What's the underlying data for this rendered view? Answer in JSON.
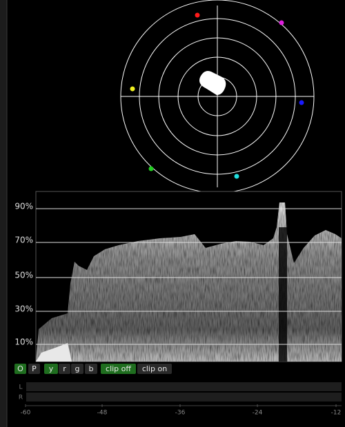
{
  "waveform": {
    "y_labels": [
      "90%",
      "70%",
      "50%",
      "30%",
      "10%"
    ]
  },
  "buttons": [
    {
      "label": "O",
      "active": true
    },
    {
      "label": "P",
      "active": false
    },
    {
      "label": "y",
      "active": true
    },
    {
      "label": "r",
      "active": false
    },
    {
      "label": "g",
      "active": false
    },
    {
      "label": "b",
      "active": false
    },
    {
      "label": "clip off",
      "active": true
    },
    {
      "label": "clip on",
      "active": false
    }
  ],
  "meters": {
    "channels": [
      "L",
      "R"
    ],
    "scale": [
      "-60",
      "-48",
      "-36",
      "-24",
      "-12"
    ]
  }
}
